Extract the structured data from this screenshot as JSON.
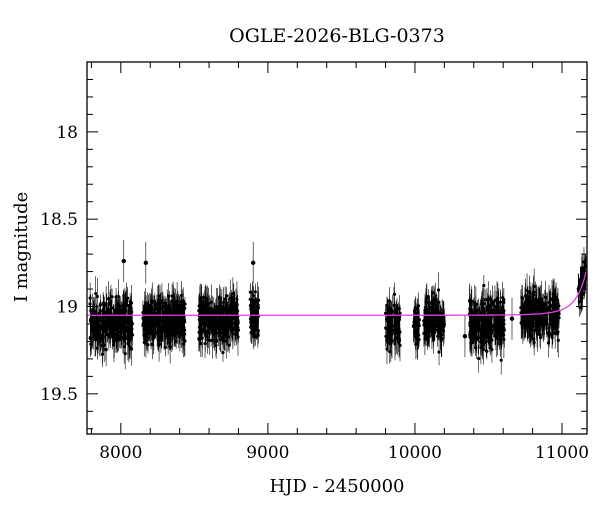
{
  "chart_data": {
    "type": "scatter",
    "title": "OGLE-2026-BLG-0373",
    "xlabel": "HJD - 2450000",
    "ylabel": "I magnitude",
    "xlim": [
      7770,
      11170
    ],
    "ylim": [
      19.73,
      17.6
    ],
    "y_inverted": true,
    "x_ticks": [
      8000,
      9000,
      10000,
      11000
    ],
    "y_ticks": [
      18,
      18.5,
      19,
      19.5
    ],
    "x_tick_labels": [
      "8000",
      "9000",
      "10000",
      "11000"
    ],
    "y_tick_labels": [
      "18",
      "18.5",
      "19",
      "19.5"
    ],
    "grid": false,
    "baseline_magnitude": 19.05,
    "model_color": "#e040e0",
    "point_color": "#000000",
    "seasons": [
      {
        "start": 7790,
        "end": 8080,
        "mean_mag": 19.1,
        "scatter": 0.1
      },
      {
        "start": 8150,
        "end": 8440,
        "mean_mag": 19.08,
        "scatter": 0.09
      },
      {
        "start": 8530,
        "end": 8800,
        "mean_mag": 19.08,
        "scatter": 0.09
      },
      {
        "start": 8880,
        "end": 8940,
        "mean_mag": 19.05,
        "scatter": 0.08
      },
      {
        "start": 9800,
        "end": 9900,
        "mean_mag": 19.12,
        "scatter": 0.09
      },
      {
        "start": 9990,
        "end": 10030,
        "mean_mag": 19.12,
        "scatter": 0.08
      },
      {
        "start": 10060,
        "end": 10200,
        "mean_mag": 19.07,
        "scatter": 0.09
      },
      {
        "start": 10370,
        "end": 10610,
        "mean_mag": 19.1,
        "scatter": 0.1
      },
      {
        "start": 10720,
        "end": 10980,
        "mean_mag": 19.05,
        "scatter": 0.09
      },
      {
        "start": 11110,
        "end": 11165,
        "mean_mag": null,
        "scatter": 0.06
      }
    ],
    "outliers": [
      {
        "x": 8020,
        "y": 18.74
      },
      {
        "x": 8170,
        "y": 18.75
      },
      {
        "x": 8900,
        "y": 18.75
      },
      {
        "x": 10340,
        "y": 19.17
      },
      {
        "x": 10660,
        "y": 19.07
      }
    ]
  }
}
